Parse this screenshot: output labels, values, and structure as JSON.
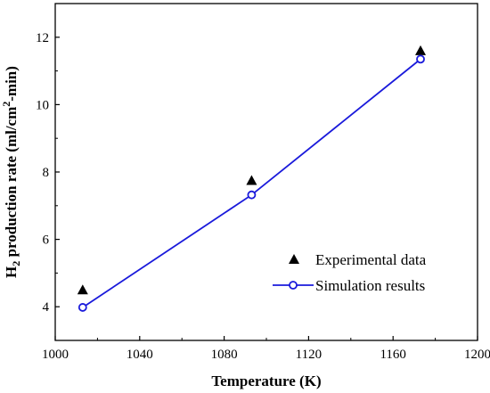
{
  "chart_data": {
    "type": "line",
    "xlabel": "Temperature (K)",
    "ylabel": {
      "prefix": "H",
      "sub": "2",
      "middle": " production rate (ml/cm",
      "sup": "2",
      "suffix": "-min)"
    },
    "xlim": [
      1000,
      1200
    ],
    "ylim": [
      3,
      13
    ],
    "xticks": [
      1000,
      1040,
      1080,
      1120,
      1160,
      1200
    ],
    "yticks": [
      4,
      6,
      8,
      10,
      12
    ],
    "grid": false,
    "legend_position": "bottom-right",
    "series": [
      {
        "name": "Experimental data",
        "marker": "filled-triangle",
        "line": false,
        "color": "#000000",
        "x": [
          1013,
          1093,
          1173
        ],
        "y": [
          4.5,
          7.75,
          11.6
        ]
      },
      {
        "name": "Simulation results",
        "marker": "open-circle",
        "line": true,
        "color": "#1a1adb",
        "x": [
          1013,
          1093,
          1173
        ],
        "y": [
          3.98,
          7.32,
          11.35
        ]
      }
    ]
  }
}
